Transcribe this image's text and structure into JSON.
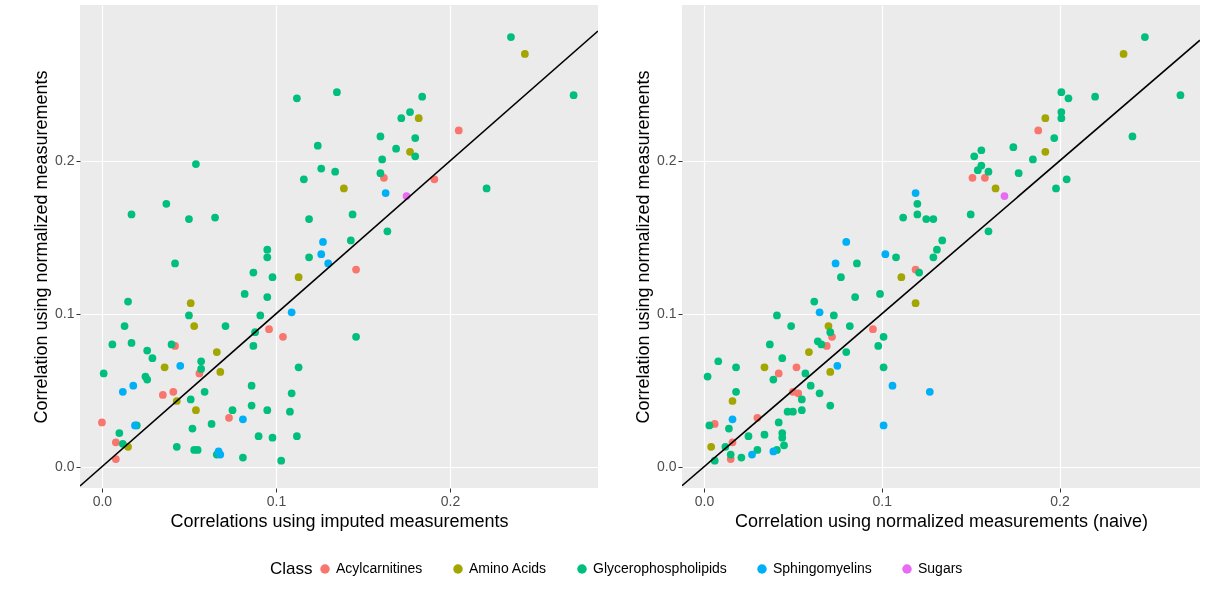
{
  "chart_data": [
    {
      "type": "scatter",
      "xlabel": "Correlations using imputed measurements",
      "ylabel": "Correlation using normalized measurements",
      "legend_title": "Class",
      "legend": "bottom",
      "grid": true,
      "marker": "circle",
      "xlim": [
        -0.0126,
        0.285
      ],
      "ylim": [
        -0.0139,
        0.302
      ],
      "xticks": [
        {
          "value": 0,
          "label": "0.0"
        },
        {
          "value": 0.1,
          "label": "0.1"
        },
        {
          "value": 0.2,
          "label": "0.2"
        }
      ],
      "yticks": [
        {
          "value": 0,
          "label": "0.0"
        },
        {
          "value": 0.1,
          "label": "0.1"
        },
        {
          "value": 0.2,
          "label": "0.2"
        }
      ],
      "series": [
        {
          "name": "Acylcarnitines",
          "color": "#f8766d",
          "x": [
            0.042,
            0.056,
            0.035,
            0.041,
            0.073,
            0.096,
            0.104,
            0.0,
            0.008,
            0.008,
            0.205,
            0.162,
            0.191,
            0.146
          ],
          "values": [
            0.079,
            0.061,
            0.047,
            0.049,
            0.032,
            0.09,
            0.085,
            0.029,
            0.016,
            0.005,
            0.22,
            0.189,
            0.188,
            0.129
          ]
        },
        {
          "name": "Amino Acids",
          "color": "#a3a500",
          "x": [
            0.051,
            0.053,
            0.066,
            0.068,
            0.036,
            0.043,
            0.054,
            0.015,
            0.113,
            0.182,
            0.177,
            0.139,
            0.243
          ],
          "values": [
            0.107,
            0.092,
            0.075,
            0.062,
            0.065,
            0.043,
            0.037,
            0.013,
            0.124,
            0.228,
            0.206,
            0.182,
            0.27
          ]
        },
        {
          "name": "Glycerophospholipids",
          "color": "#00bf7d",
          "x": [
            0.112,
            0.135,
            0.124,
            0.116,
            0.126,
            0.134,
            0.054,
            0.037,
            0.017,
            0.05,
            0.065,
            0.119,
            0.042,
            0.095,
            0.095,
            0.119,
            0.087,
            0.098,
            0.015,
            0.082,
            0.095,
            0.05,
            0.091,
            0.013,
            0.071,
            0.006,
            0.017,
            0.04,
            0.088,
            0.087,
            0.026,
            0.029,
            0.057,
            0.057,
            0.001,
            0.025,
            0.026,
            0.113,
            0.059,
            0.086,
            0.051,
            0.109,
            0.075,
            0.086,
            0.095,
            0.108,
            0.02,
            0.052,
            0.063,
            0.01,
            0.012,
            0.112,
            0.09,
            0.098,
            0.043,
            0.053,
            0.055,
            0.066,
            0.081,
            0.103,
            0.235,
            0.271,
            0.184,
            0.177,
            0.172,
            0.16,
            0.18,
            0.169,
            0.18,
            0.161,
            0.16,
            0.221,
            0.144,
            0.143,
            0.164,
            0.146
          ],
          "values": [
            0.241,
            0.245,
            0.21,
            0.188,
            0.195,
            0.193,
            0.198,
            0.172,
            0.165,
            0.162,
            0.163,
            0.162,
            0.133,
            0.142,
            0.137,
            0.137,
            0.127,
            0.124,
            0.108,
            0.113,
            0.111,
            0.099,
            0.099,
            0.092,
            0.092,
            0.08,
            0.081,
            0.08,
            0.088,
            0.079,
            0.076,
            0.071,
            0.069,
            0.064,
            0.061,
            0.059,
            0.057,
            0.065,
            0.049,
            0.053,
            0.044,
            0.048,
            0.037,
            0.04,
            0.037,
            0.036,
            0.027,
            0.025,
            0.028,
            0.022,
            0.015,
            0.02,
            0.02,
            0.019,
            0.013,
            0.011,
            0.011,
            0.008,
            0.006,
            0.004,
            0.281,
            0.243,
            0.242,
            0.232,
            0.228,
            0.216,
            0.215,
            0.208,
            0.203,
            0.201,
            0.192,
            0.182,
            0.165,
            0.148,
            0.154,
            0.085
          ]
        },
        {
          "name": "Sphingomyelins",
          "color": "#00b0f6",
          "x": [
            0.012,
            0.018,
            0.019,
            0.045,
            0.067,
            0.068,
            0.081,
            0.109,
            0.127,
            0.126,
            0.13,
            0.163
          ],
          "values": [
            0.049,
            0.053,
            0.027,
            0.066,
            0.01,
            0.008,
            0.031,
            0.101,
            0.147,
            0.139,
            0.133,
            0.179
          ]
        },
        {
          "name": "Sugars",
          "color": "#e76bf3",
          "x": [
            0.175
          ],
          "values": [
            0.177
          ]
        },
        {
          "type": "line",
          "color": "#000000",
          "marker": "none",
          "x": [
            -0.0126,
            0.285
          ],
          "values": [
            -0.0126,
            0.285
          ]
        }
      ]
    },
    {
      "type": "scatter",
      "xlabel": "Correlation using normalized measurements (naive)",
      "ylabel": "Correlation using normalized measurements",
      "grid": true,
      "marker": "circle",
      "xlim": [
        -0.0124,
        0.279
      ],
      "ylim": [
        -0.0139,
        0.302
      ],
      "xticks": [
        {
          "value": 0,
          "label": "0.0"
        },
        {
          "value": 0.1,
          "label": "0.1"
        },
        {
          "value": 0.2,
          "label": "0.2"
        }
      ],
      "yticks": [
        {
          "value": 0,
          "label": "0.0"
        },
        {
          "value": 0.1,
          "label": "0.1"
        },
        {
          "value": 0.2,
          "label": "0.2"
        }
      ],
      "series": [
        {
          "name": "Acylcarnitines",
          "color": "#f8766d",
          "x": [
            0.119,
            0.095,
            0.069,
            0.072,
            0.042,
            0.052,
            0.05,
            0.053,
            0.03,
            0.006,
            0.016,
            0.015,
            0.188,
            0.151,
            0.158
          ],
          "values": [
            0.129,
            0.09,
            0.079,
            0.085,
            0.061,
            0.065,
            0.049,
            0.048,
            0.032,
            0.028,
            0.016,
            0.005,
            0.22,
            0.189,
            0.189
          ]
        },
        {
          "name": "Amino Acids",
          "color": "#a3a500",
          "x": [
            0.111,
            0.119,
            0.07,
            0.059,
            0.071,
            0.034,
            0.016,
            0.004,
            0.236,
            0.192,
            0.192,
            0.164
          ],
          "values": [
            0.124,
            0.107,
            0.092,
            0.075,
            0.062,
            0.065,
            0.043,
            0.013,
            0.27,
            0.228,
            0.206,
            0.182
          ]
        },
        {
          "name": "Glycerophospholipids",
          "color": "#00bf7d",
          "x": [
            0.12,
            0.12,
            0.112,
            0.125,
            0.129,
            0.134,
            0.131,
            0.129,
            0.108,
            0.121,
            0.086,
            0.077,
            0.085,
            0.099,
            0.062,
            0.073,
            0.041,
            0.049,
            0.082,
            0.071,
            0.101,
            0.037,
            0.064,
            0.066,
            0.098,
            0.08,
            0.044,
            0.008,
            0.018,
            0.002,
            0.039,
            0.057,
            0.101,
            0.06,
            0.018,
            0.065,
            0.055,
            0.071,
            0.055,
            0.047,
            0.05,
            0.042,
            0.003,
            0.014,
            0.025,
            0.034,
            0.044,
            0.044,
            0.045,
            0.041,
            0.03,
            0.012,
            0.015,
            0.021,
            0.006,
            0.248,
            0.268,
            0.201,
            0.205,
            0.22,
            0.201,
            0.201,
            0.197,
            0.241,
            0.174,
            0.185,
            0.177,
            0.156,
            0.152,
            0.156,
            0.154,
            0.16,
            0.198,
            0.204,
            0.15,
            0.16
          ],
          "values": [
            0.172,
            0.165,
            0.163,
            0.162,
            0.162,
            0.148,
            0.142,
            0.137,
            0.137,
            0.127,
            0.133,
            0.124,
            0.111,
            0.113,
            0.108,
            0.099,
            0.099,
            0.092,
            0.092,
            0.088,
            0.085,
            0.08,
            0.082,
            0.08,
            0.079,
            0.075,
            0.071,
            0.069,
            0.065,
            0.059,
            0.057,
            0.061,
            0.065,
            0.053,
            0.049,
            0.048,
            0.044,
            0.04,
            0.037,
            0.036,
            0.036,
            0.029,
            0.027,
            0.025,
            0.02,
            0.021,
            0.022,
            0.019,
            0.014,
            0.011,
            0.011,
            0.013,
            0.008,
            0.006,
            0.004,
            0.281,
            0.243,
            0.245,
            0.241,
            0.242,
            0.232,
            0.228,
            0.215,
            0.216,
            0.209,
            0.201,
            0.192,
            0.207,
            0.203,
            0.197,
            0.194,
            0.193,
            0.182,
            0.188,
            0.165,
            0.154
          ]
        },
        {
          "name": "Sphingomyelins",
          "color": "#00b0f6",
          "x": [
            0.119,
            0.08,
            0.074,
            0.102,
            0.065,
            0.075,
            0.106,
            0.127,
            0.101,
            0.016,
            0.027,
            0.039
          ],
          "values": [
            0.179,
            0.147,
            0.133,
            0.139,
            0.101,
            0.066,
            0.053,
            0.049,
            0.027,
            0.031,
            0.008,
            0.01
          ]
        },
        {
          "name": "Sugars",
          "color": "#e76bf3",
          "x": [
            0.169
          ],
          "values": [
            0.177
          ]
        },
        {
          "type": "line",
          "color": "#000000",
          "marker": "none",
          "x": [
            -0.0124,
            0.279
          ],
          "values": [
            -0.0124,
            0.279
          ]
        }
      ]
    }
  ]
}
